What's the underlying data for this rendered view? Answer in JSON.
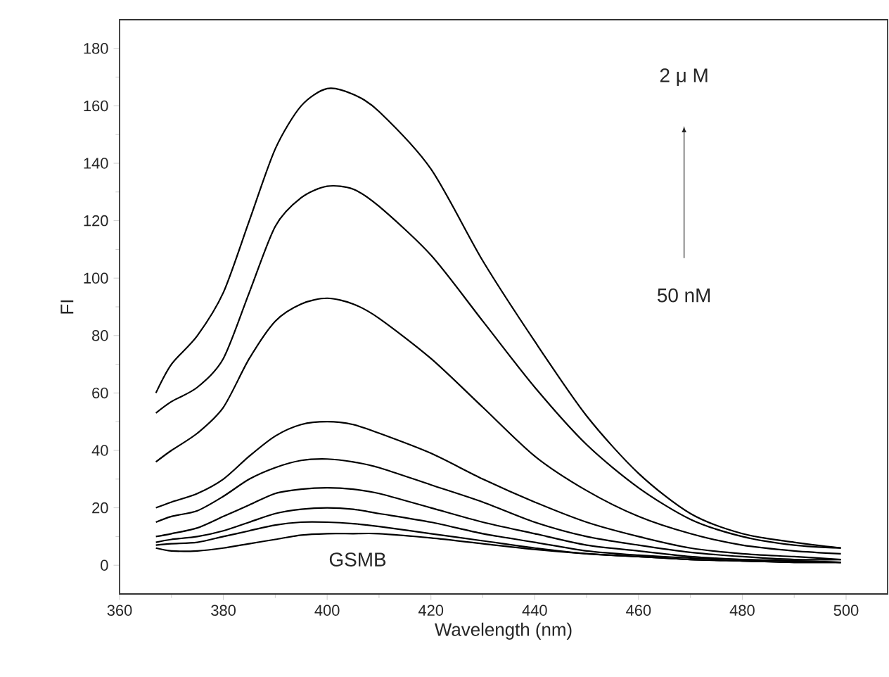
{
  "chart_data": {
    "type": "line",
    "xlabel": "Wavelength (nm)",
    "ylabel": "FI",
    "x": [
      367,
      370,
      375,
      380,
      385,
      390,
      395,
      400,
      405,
      410,
      420,
      430,
      440,
      450,
      460,
      470,
      480,
      490,
      499
    ],
    "xlim": [
      360,
      508
    ],
    "xticks": [
      360,
      380,
      400,
      420,
      440,
      460,
      480,
      500
    ],
    "ylim": [
      -10,
      190
    ],
    "yticks": [
      0,
      20,
      40,
      60,
      80,
      100,
      120,
      140,
      160,
      180
    ],
    "series": [
      {
        "color": "#000000",
        "values": [
          60,
          70,
          80,
          95,
          120,
          145,
          160,
          166,
          164,
          158,
          138,
          106,
          78,
          52,
          32,
          18,
          11,
          8,
          6
        ]
      },
      {
        "color": "#000000",
        "values": [
          53,
          57,
          62,
          72,
          95,
          118,
          128,
          132,
          131,
          125,
          108,
          85,
          62,
          42,
          27,
          16,
          10,
          7,
          6
        ]
      },
      {
        "color": "#000000",
        "values": [
          36,
          40,
          46,
          55,
          72,
          85,
          91,
          93,
          91,
          86,
          72,
          55,
          38,
          26,
          17,
          11,
          7,
          5,
          4
        ]
      },
      {
        "color": "#000000",
        "values": [
          20,
          22,
          25,
          30,
          38,
          45,
          49,
          50,
          49,
          46,
          39,
          30,
          22,
          15,
          10,
          6,
          4,
          3,
          2
        ]
      },
      {
        "color": "#000000",
        "values": [
          15,
          17,
          19,
          24,
          30,
          34,
          36.5,
          37,
          36,
          34,
          28,
          22,
          15,
          10,
          7,
          4.5,
          3,
          2,
          2
        ]
      },
      {
        "color": "#000000",
        "values": [
          10,
          11,
          13,
          17,
          21,
          25,
          26.5,
          27,
          26.5,
          25,
          20,
          15,
          11,
          7,
          5,
          3,
          2,
          1.5,
          1
        ]
      },
      {
        "color": "#000000",
        "values": [
          8,
          9,
          10,
          12,
          15,
          18,
          19.5,
          20,
          19.5,
          18,
          15,
          11,
          8,
          5,
          3.5,
          2.5,
          2,
          1.5,
          1
        ]
      },
      {
        "color": "#000000",
        "values": [
          7,
          7.5,
          8,
          10,
          12,
          14,
          15,
          15,
          14.5,
          13.5,
          11,
          8.5,
          6,
          4,
          3,
          2,
          1.5,
          1,
          1
        ]
      },
      {
        "color": "#000000",
        "values": [
          6,
          5,
          5,
          6,
          7.5,
          9,
          10.5,
          11,
          11,
          11,
          9.5,
          7.5,
          5.5,
          4,
          3,
          2,
          1.5,
          1,
          1
        ]
      }
    ],
    "annotations": [
      "2 μ M",
      "50 nM",
      "GSMB"
    ]
  }
}
